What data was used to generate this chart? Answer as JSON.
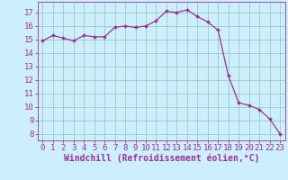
{
  "x": [
    0,
    1,
    2,
    3,
    4,
    5,
    6,
    7,
    8,
    9,
    10,
    11,
    12,
    13,
    14,
    15,
    16,
    17,
    18,
    19,
    20,
    21,
    22,
    23
  ],
  "y": [
    14.9,
    15.3,
    15.1,
    14.9,
    15.3,
    15.2,
    15.2,
    15.9,
    16.0,
    15.9,
    16.0,
    16.4,
    17.1,
    17.0,
    17.2,
    16.7,
    16.3,
    15.7,
    12.3,
    10.3,
    10.1,
    9.8,
    9.1,
    8.0
  ],
  "line_color": "#993399",
  "marker_color": "#993399",
  "bg_color": "#cceeff",
  "grid_color": "#99ccbb",
  "xlabel": "Windchill (Refroidissement éolien,°C)",
  "xlim": [
    -0.5,
    23.5
  ],
  "ylim": [
    7.5,
    17.8
  ],
  "yticks": [
    8,
    9,
    10,
    11,
    12,
    13,
    14,
    15,
    16,
    17
  ],
  "xtick_labels": [
    "0",
    "1",
    "2",
    "3",
    "4",
    "5",
    "6",
    "7",
    "8",
    "9",
    "10",
    "11",
    "12",
    "13",
    "14",
    "15",
    "16",
    "17",
    "18",
    "19",
    "20",
    "21",
    "22",
    "23"
  ],
  "axis_color": "#993399",
  "tick_color": "#993399",
  "xlabel_color": "#993399",
  "xlabel_fontsize": 7,
  "tick_fontsize": 6.5
}
